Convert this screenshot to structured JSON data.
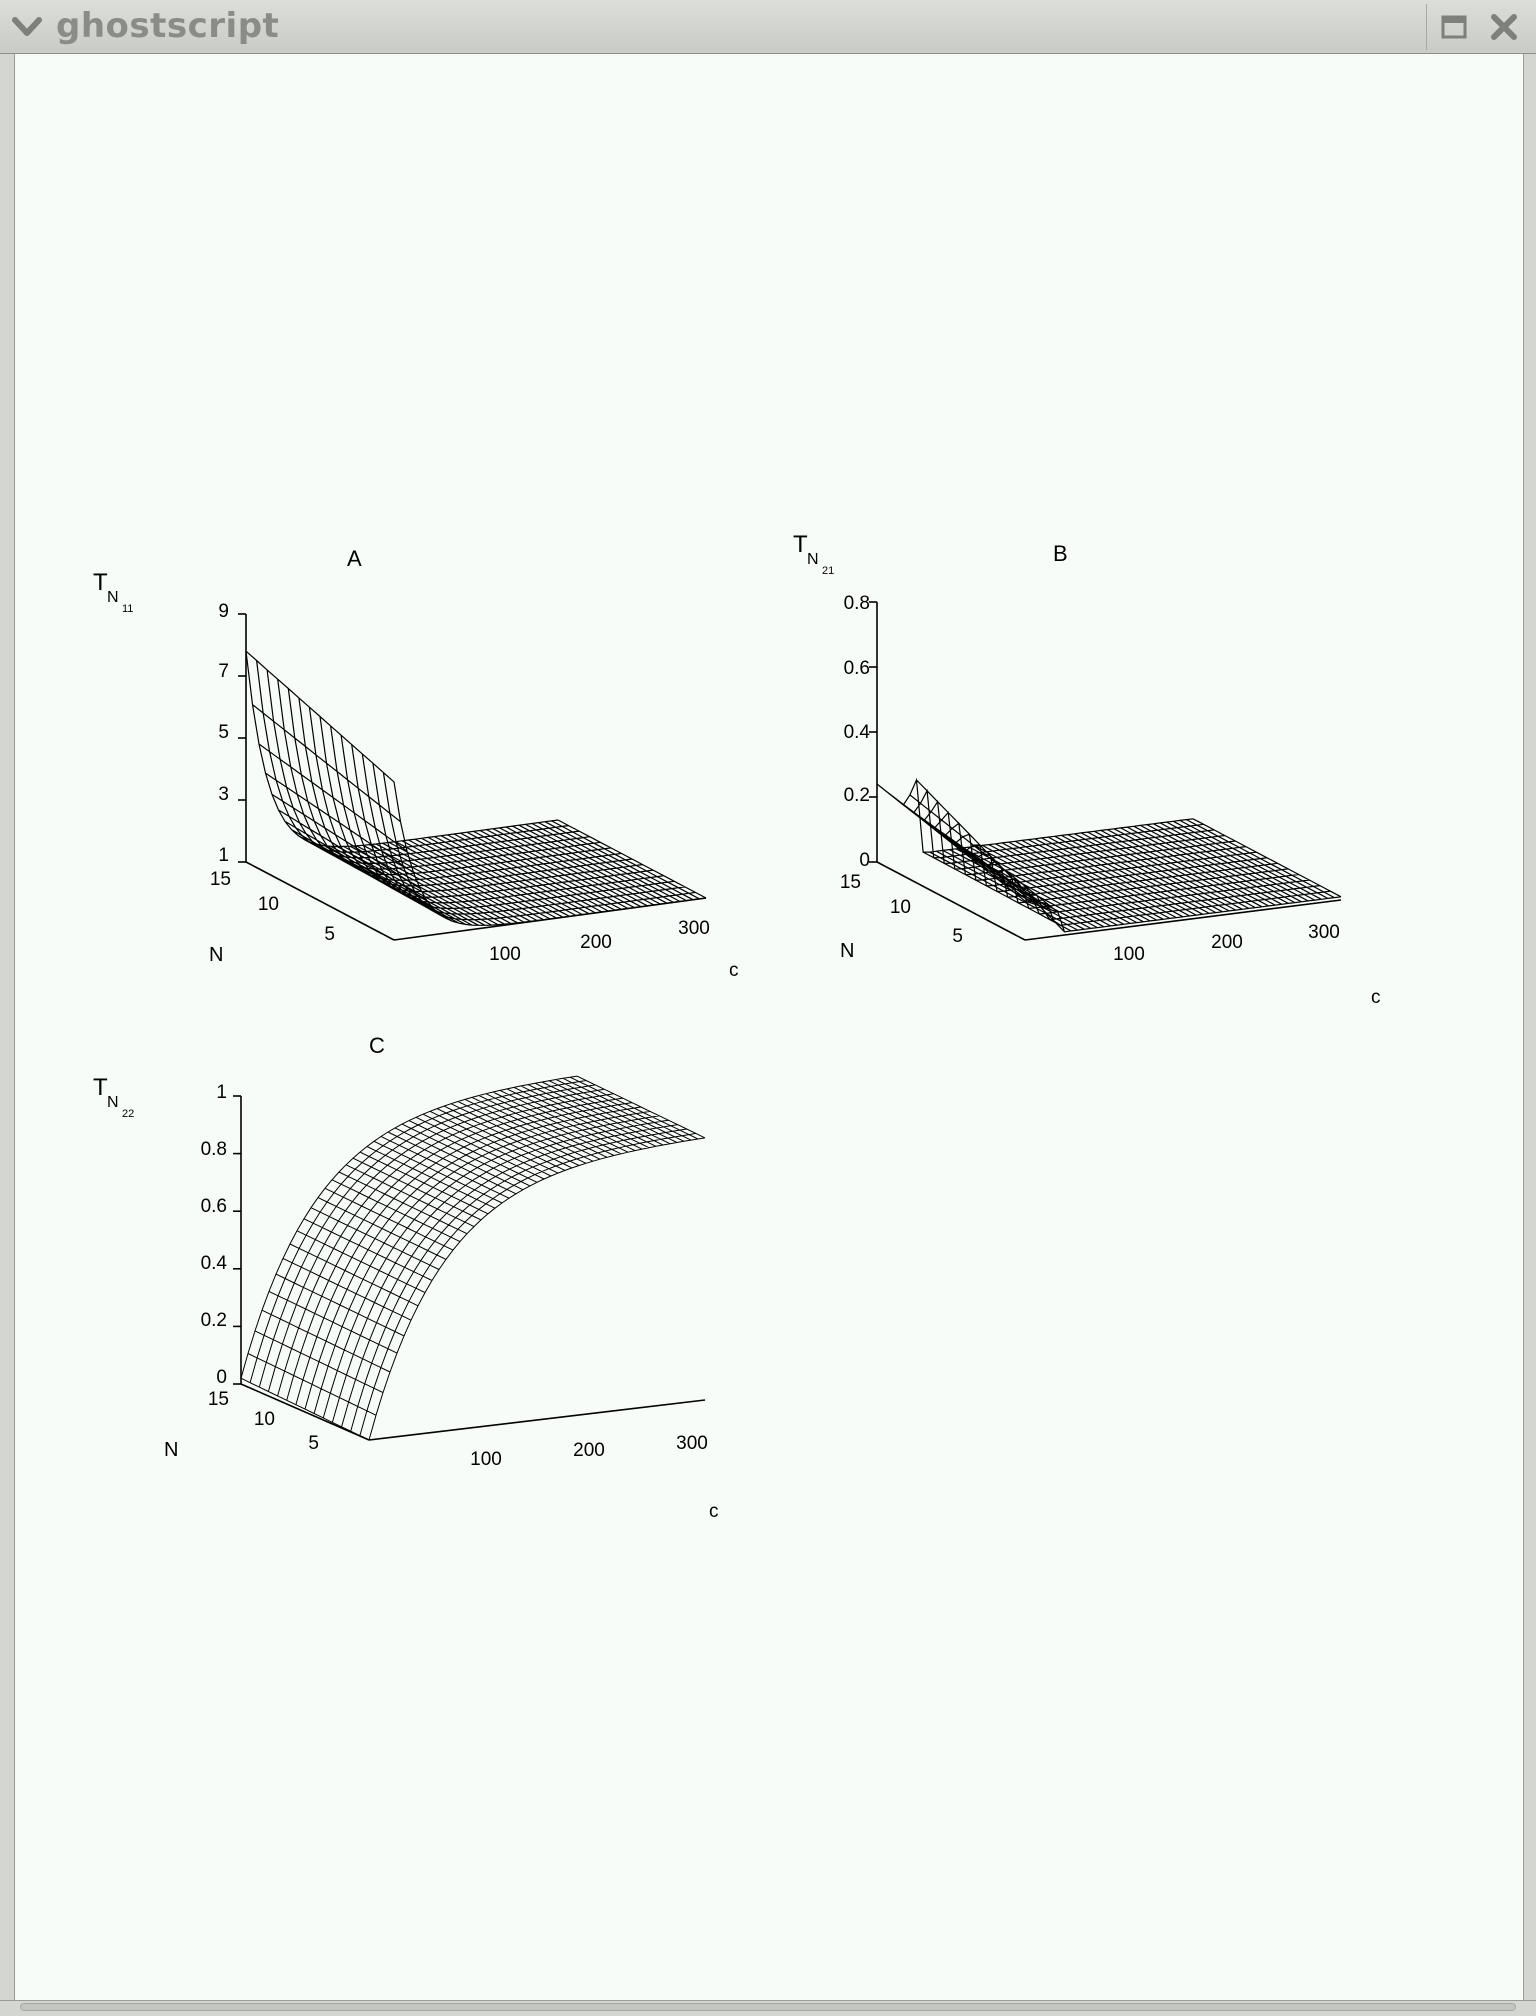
{
  "window": {
    "title": "ghostscript",
    "icons": {
      "menu": "chevron-down-icon",
      "maximize": "maximize-icon",
      "close": "close-icon"
    }
  },
  "panels": {
    "a": {
      "label": "A",
      "z_label": "T",
      "z_sub": "N",
      "z_subsub": "11",
      "z_ticks": [
        "9",
        "7",
        "5",
        "3",
        "1"
      ],
      "n_ticks": [
        "15",
        "10",
        "5"
      ],
      "n_label": "N",
      "c_ticks": [
        "100",
        "200",
        "300"
      ],
      "c_label": "c"
    },
    "b": {
      "label": "B",
      "z_label": "T",
      "z_sub": "N",
      "z_subsub": "21",
      "z_ticks": [
        "0.8",
        "0.6",
        "0.4",
        "0.2",
        "0"
      ],
      "n_ticks": [
        "15",
        "10",
        "5"
      ],
      "n_label": "N",
      "c_ticks": [
        "100",
        "200",
        "300"
      ],
      "c_label": "c"
    },
    "c": {
      "label": "C",
      "z_label": "T",
      "z_sub": "N",
      "z_subsub": "22",
      "z_ticks": [
        "1",
        "0.8",
        "0.6",
        "0.4",
        "0.2",
        "0"
      ],
      "n_ticks": [
        "15",
        "10",
        "5"
      ],
      "n_label": "N",
      "c_ticks": [
        "100",
        "200",
        "300"
      ],
      "c_label": "c"
    }
  },
  "chart_data": [
    {
      "type": "surface",
      "title": "A",
      "xlabel": "c",
      "ylabel": "N",
      "zlabel": "T_N11",
      "xlim": [
        0,
        320
      ],
      "ylim": [
        1,
        15
      ],
      "zlim": [
        1,
        9
      ],
      "zticks": [
        1,
        3,
        5,
        7,
        9
      ],
      "description": "value near 7.8 at N=15, c=0; decays rapidly to about 1 by c~60 and stays flat"
    },
    {
      "type": "surface",
      "title": "B",
      "xlabel": "c",
      "ylabel": "N",
      "zlabel": "T_N21",
      "xlim": [
        0,
        320
      ],
      "ylim": [
        1,
        15
      ],
      "zlim": [
        0,
        0.8
      ],
      "zticks": [
        0,
        0.2,
        0.4,
        0.6,
        0.8
      ],
      "description": "value about 0.25 at c=0 declining to ~0.1, sharp peak ~0.28 near c~40, then ~0"
    },
    {
      "type": "surface",
      "title": "C",
      "xlabel": "c",
      "ylabel": "N",
      "zlabel": "T_N22",
      "xlim": [
        0,
        320
      ],
      "ylim": [
        1,
        15
      ],
      "zlim": [
        0,
        1
      ],
      "zticks": [
        0,
        0.2,
        0.4,
        0.6,
        0.8,
        1
      ],
      "description": "value 0 at c=0 rising to ~0.9 by c~300 across all N"
    }
  ]
}
